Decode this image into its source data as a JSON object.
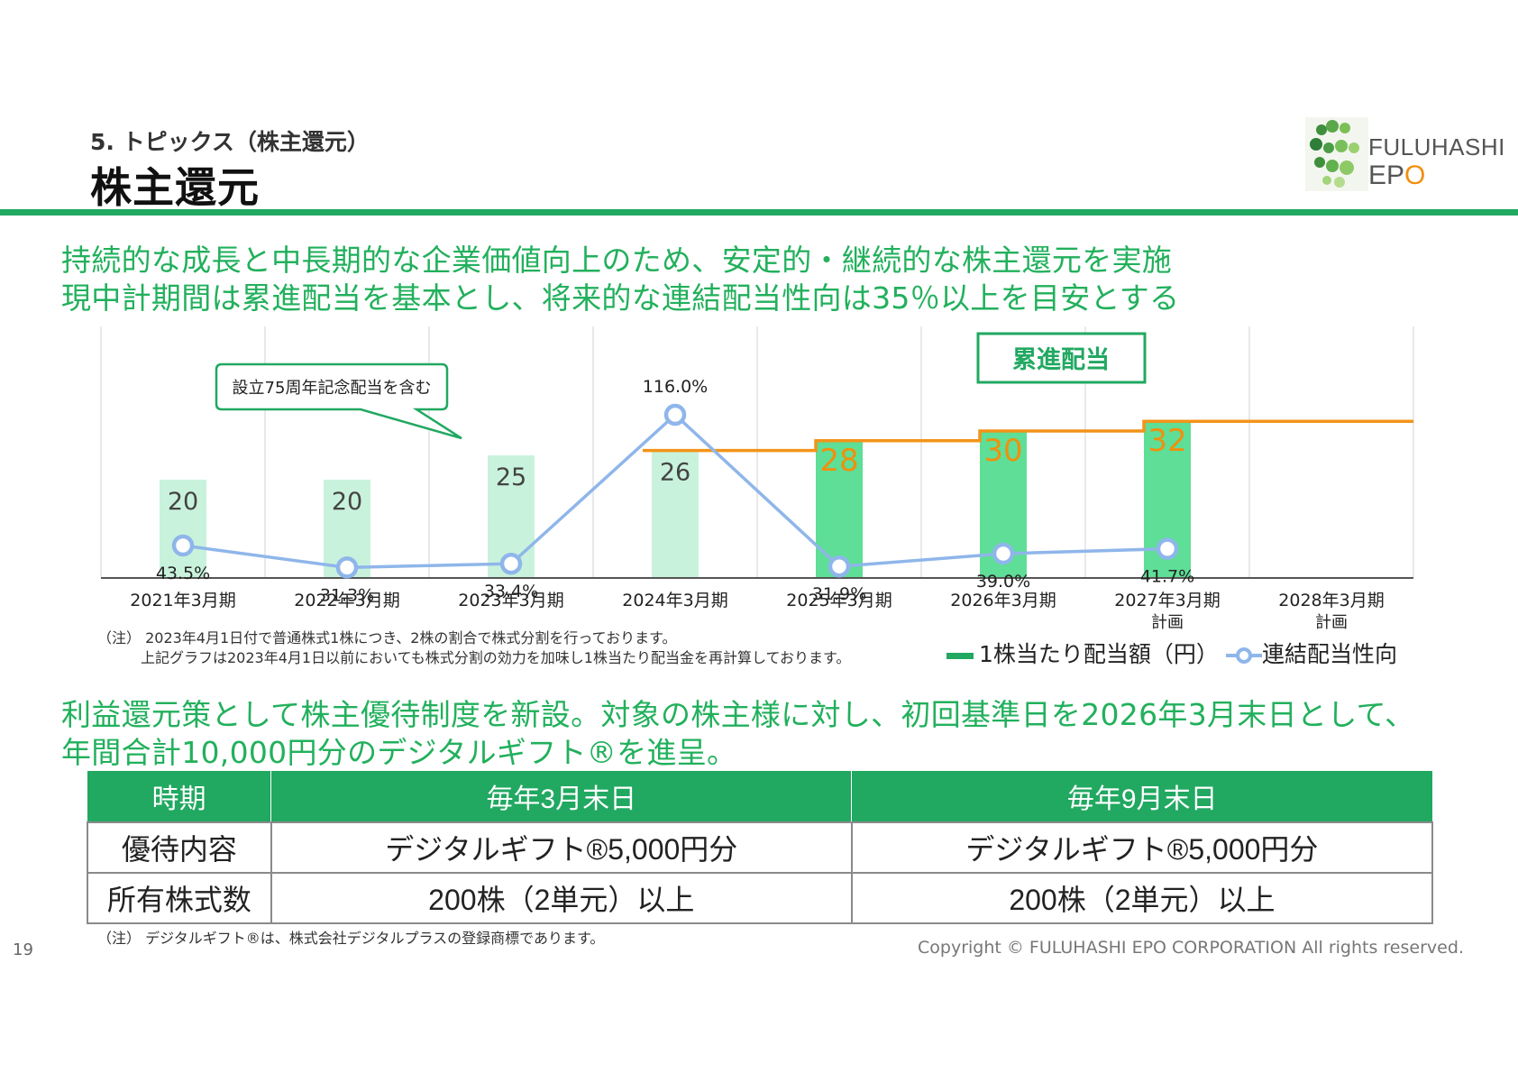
{
  "header": {
    "subtitle": "5. トピックス（株主還元）",
    "title": "株主還元"
  },
  "logo": {
    "line1": "FULUHASHI",
    "line2_a": "EP",
    "line2_b": "O"
  },
  "lead": {
    "line1": "持続的な成長と中長期的な企業価値向上のため、安定的・継続的な株主還元を実施",
    "line2": "現中計期間は累進配当を基本とし、将来的な連結配当性向は35％以上を目安とする"
  },
  "chart_data": {
    "type": "bar",
    "categories": [
      "2021年3月期",
      "2022年3月期",
      "2023年3月期",
      "2024年3月期",
      "2025年3月期",
      "2026年3月期",
      "2027年3月期",
      "2028年3月期"
    ],
    "category_notes": [
      "",
      "",
      "",
      "",
      "",
      "",
      "計画",
      "計画"
    ],
    "series": [
      {
        "name": "1株当たり配当額（円）",
        "kind": "bar",
        "values": [
          20,
          20,
          25,
          26,
          28,
          30,
          32,
          null
        ]
      },
      {
        "name": "連結配当性向",
        "kind": "line",
        "values": [
          43.5,
          31.3,
          33.4,
          116.0,
          31.9,
          39.0,
          41.7,
          null
        ],
        "labels": [
          "43.5%",
          "31.3%",
          "33.4%",
          "116.0%",
          "31.9%",
          "39.0%",
          "41.7%",
          ""
        ]
      }
    ],
    "progressive_dividend_step": {
      "label": "累進配当",
      "from_category": "2024年3月期",
      "levels": [
        26,
        28,
        30,
        32,
        32
      ]
    },
    "callout": "設立75周年記念配当を含む",
    "colors": {
      "bar_light": "#c9f2dc",
      "bar_strong": "#5ede96",
      "label_orange": "#f0900e",
      "line_blue": "#8fb6ea",
      "step_orange": "#f2941a"
    },
    "grid": "vertical"
  },
  "chart_notes": {
    "line1": "（注）  2023年4月1日付で普通株式1株につき、2株の割合で株式分割を行っております。",
    "line2": "上記グラフは2023年4月1日以前においても株式分割の効力を加味し1株当たり配当金を再計算しております。"
  },
  "legend": {
    "bars": "1株当たり配当額（円）",
    "line": "連結配当性向"
  },
  "benefit": {
    "line1": "利益還元策として株主優待制度を新設。対象の株主様に対し、初回基準日を2026年3月末日として、",
    "line2": "年間合計10,000円分のデジタルギフト®を進呈。",
    "headers": [
      "時期",
      "毎年3月末日",
      "毎年9月末日"
    ],
    "rows": [
      [
        "優待内容",
        "デジタルギフト®5,000円分",
        "デジタルギフト®5,000円分"
      ],
      [
        "所有株式数",
        "200株（2単元）以上",
        "200株（2単元）以上"
      ]
    ]
  },
  "footer": {
    "note": "（注）  デジタルギフト®は、株式会社デジタルプラスの登録商標であります。",
    "page": "19",
    "copyright": "Copyright © FULUHASHI EPO CORPORATION All rights reserved."
  }
}
